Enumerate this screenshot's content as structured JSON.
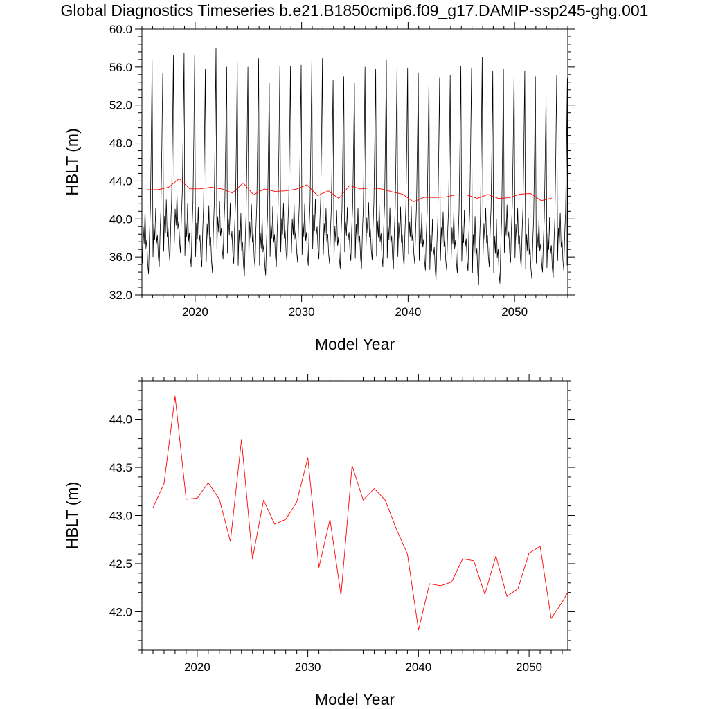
{
  "title": "Global Diagnostics Timeseries b.e21.B1850cmip6.f09_g17.DAMIP-ssp245-ghg.001",
  "colors": {
    "monthly_series": "#000000",
    "annual_series": "#ff0000"
  },
  "chart_data": [
    {
      "type": "line",
      "xlabel": "Model Year",
      "ylabel": "HBLT (m)",
      "xlim": [
        2015.0,
        2055.0
      ],
      "ylim": [
        32.0,
        60.0
      ],
      "xticks": [
        "2020",
        "2030",
        "2040",
        "2050"
      ],
      "yticks": [
        "32.0",
        "36.0",
        "40.0",
        "44.0",
        "48.0",
        "52.0",
        "56.0",
        "60.0"
      ],
      "series": [
        {
          "name": "",
          "color": "#000000",
          "monthly_start_year": 2015.0,
          "annual_peaks": [
            56.8,
            55.4,
            57.2,
            57.5,
            57.2,
            55.8,
            58.0,
            56.0,
            56.6,
            56.0,
            56.9,
            54.3,
            56.1,
            56.1,
            56.2,
            56.9,
            56.9,
            54.6,
            55.0,
            54.3,
            56.0,
            55.8,
            56.7,
            56.1,
            55.9,
            55.4,
            54.9,
            54.9,
            55.1,
            56.1,
            55.9,
            57.0,
            55.6,
            55.8,
            55.7,
            55.6,
            55.0,
            53.1,
            55.1,
            54.8
          ],
          "annual_troughs": [
            34.2,
            35.0,
            35.5,
            36.4,
            35.0,
            35.0,
            34.3,
            35.8,
            35.3,
            34.0,
            34.9,
            34.1,
            35.0,
            35.5,
            35.4,
            35.1,
            35.8,
            35.3,
            34.8,
            35.6,
            34.8,
            35.7,
            35.0,
            34.8,
            35.0,
            35.3,
            34.6,
            33.6,
            34.6,
            34.3,
            34.5,
            33.1,
            35.0,
            33.2,
            35.4,
            34.9,
            33.7,
            34.4,
            33.8,
            34.6
          ]
        },
        {
          "name": "",
          "color": "#ff0000",
          "x": [
            2015.5,
            2016.5,
            2017.5,
            2018.5,
            2019.5,
            2020.5,
            2021.5,
            2022.5,
            2023.5,
            2024.5,
            2025.5,
            2026.5,
            2027.5,
            2028.5,
            2029.5,
            2030.5,
            2031.5,
            2032.5,
            2033.5,
            2034.5,
            2035.5,
            2036.5,
            2037.5,
            2038.5,
            2039.5,
            2040.5,
            2041.5,
            2042.5,
            2043.5,
            2044.5,
            2045.5,
            2046.5,
            2047.5,
            2048.5,
            2049.5,
            2050.5,
            2051.5,
            2052.5,
            2053.5
          ],
          "values": [
            43.08,
            43.08,
            43.33,
            44.24,
            43.17,
            43.18,
            43.34,
            43.17,
            42.73,
            43.79,
            42.55,
            43.16,
            42.91,
            42.96,
            43.14,
            43.6,
            42.46,
            42.96,
            42.17,
            43.52,
            43.16,
            43.28,
            43.16,
            42.86,
            42.6,
            41.81,
            42.29,
            42.27,
            42.31,
            42.55,
            42.53,
            42.18,
            42.58,
            42.16,
            42.24,
            42.61,
            42.68,
            41.93,
            42.2
          ]
        }
      ]
    },
    {
      "type": "line",
      "xlabel": "Model Year",
      "ylabel": "HBLT (m)",
      "xlim": [
        2015.0,
        2053.5
      ],
      "ylim": [
        41.6,
        44.4
      ],
      "xticks": [
        "2020",
        "2030",
        "2040",
        "2050"
      ],
      "yticks": [
        "42.0",
        "42.5",
        "43.0",
        "43.5",
        "44.0"
      ],
      "series": [
        {
          "name": "",
          "color": "#ff0000",
          "x": [
            2015.0,
            2016.0,
            2017.0,
            2018.0,
            2019.0,
            2020.0,
            2021.0,
            2022.0,
            2023.0,
            2024.0,
            2025.0,
            2026.0,
            2027.0,
            2028.0,
            2029.0,
            2030.0,
            2031.0,
            2032.0,
            2033.0,
            2034.0,
            2035.0,
            2036.0,
            2037.0,
            2038.0,
            2039.0,
            2040.0,
            2041.0,
            2042.0,
            2043.0,
            2044.0,
            2045.0,
            2046.0,
            2047.0,
            2048.0,
            2049.0,
            2050.0,
            2051.0,
            2052.0,
            2053.0,
            2053.5
          ],
          "values": [
            43.08,
            43.08,
            43.33,
            44.24,
            43.17,
            43.18,
            43.34,
            43.17,
            42.73,
            43.79,
            42.55,
            43.16,
            42.91,
            42.96,
            43.14,
            43.6,
            42.46,
            42.96,
            42.17,
            43.52,
            43.16,
            43.28,
            43.16,
            42.86,
            42.6,
            41.81,
            42.29,
            42.27,
            42.31,
            42.55,
            42.53,
            42.18,
            42.58,
            42.16,
            42.24,
            42.61,
            42.68,
            41.93,
            42.1,
            42.2
          ]
        }
      ]
    }
  ]
}
